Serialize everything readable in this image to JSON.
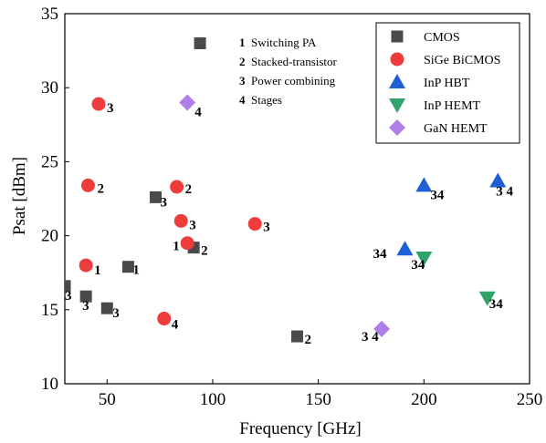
{
  "chart_data": {
    "type": "scatter",
    "xlabel": "Frequency [GHz]",
    "ylabel": "Psat [dBm]",
    "xlim": [
      30,
      250
    ],
    "ylim": [
      10,
      35
    ],
    "xticks": [
      50,
      100,
      150,
      200,
      250
    ],
    "yticks": [
      10,
      15,
      20,
      25,
      30,
      35
    ],
    "grid": false,
    "legend_position": "top-right",
    "notes": [
      {
        "num": "1",
        "text": "Switching PA"
      },
      {
        "num": "2",
        "text": "Stacked-transistor"
      },
      {
        "num": "3",
        "text": "Power combining"
      },
      {
        "num": "4",
        "text": "Stages"
      }
    ],
    "series": [
      {
        "name": "CMOS",
        "marker": "square",
        "color": "#4a4a4a",
        "points": [
          {
            "x": 94,
            "y": 33.0,
            "label": ""
          },
          {
            "x": 73,
            "y": 22.6,
            "label": "3"
          },
          {
            "x": 60,
            "y": 17.9,
            "label": "1"
          },
          {
            "x": 91,
            "y": 19.2,
            "label": "2"
          },
          {
            "x": 30,
            "y": 16.6,
            "label": "3"
          },
          {
            "x": 40,
            "y": 15.9,
            "label": "3"
          },
          {
            "x": 50,
            "y": 15.1,
            "label": "3"
          },
          {
            "x": 140,
            "y": 13.2,
            "label": "2"
          }
        ]
      },
      {
        "name": "SiGe BiCMOS",
        "marker": "circle",
        "color": "#ee3b3b",
        "points": [
          {
            "x": 46,
            "y": 28.9,
            "label": "3"
          },
          {
            "x": 41,
            "y": 23.4,
            "label": "2"
          },
          {
            "x": 83,
            "y": 23.3,
            "label": "2"
          },
          {
            "x": 85,
            "y": 21.0,
            "label": "3"
          },
          {
            "x": 120,
            "y": 20.8,
            "label": "3"
          },
          {
            "x": 88,
            "y": 19.5,
            "label": "1"
          },
          {
            "x": 40,
            "y": 18.0,
            "label": "1"
          },
          {
            "x": 77,
            "y": 14.4,
            "label": "4"
          }
        ]
      },
      {
        "name": "InP HBT",
        "marker": "triangle-up",
        "color": "#1f5fd6",
        "points": [
          {
            "x": 200,
            "y": 23.4,
            "label": "34"
          },
          {
            "x": 235,
            "y": 23.7,
            "label": "3 4"
          },
          {
            "x": 191,
            "y": 19.1,
            "label": "34"
          }
        ]
      },
      {
        "name": "InP HEMT",
        "marker": "triangle-down",
        "color": "#2ea36a",
        "points": [
          {
            "x": 200,
            "y": 18.5,
            "label": "34"
          },
          {
            "x": 230,
            "y": 15.8,
            "label": "34"
          }
        ]
      },
      {
        "name": "GaN HEMT",
        "marker": "diamond",
        "color": "#b07ee8",
        "points": [
          {
            "x": 88,
            "y": 29.0,
            "label": "4"
          },
          {
            "x": 180,
            "y": 13.7,
            "label": "3 4"
          }
        ]
      }
    ]
  }
}
